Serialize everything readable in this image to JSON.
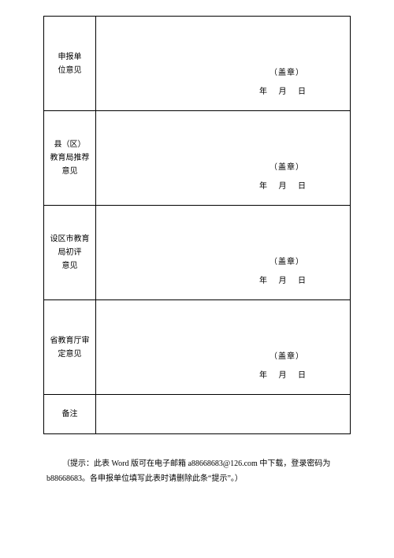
{
  "form": {
    "rows": [
      {
        "label": "申报单\n位意见",
        "seal": "（盖章）",
        "date": {
          "y": "年",
          "m": "月",
          "d": "日"
        }
      },
      {
        "label": "县（区）\n教育局推荐\n意见",
        "seal": "（盖章）",
        "date": {
          "y": "年",
          "m": "月",
          "d": "日"
        }
      },
      {
        "label": "设区市教育\n局初评\n意见",
        "seal": "（盖章）",
        "date": {
          "y": "年",
          "m": "月",
          "d": "日"
        }
      },
      {
        "label": "省教育厅审\n定意见",
        "seal": "（盖章）",
        "date": {
          "y": "年",
          "m": "月",
          "d": "日"
        }
      }
    ],
    "remarks_label": "备注"
  },
  "hint": "（提示：此表 Word 版可在电子邮箱 a88668683@126.com 中下载，登录密码为 b88668683。各申报单位填写此表时请删除此条“提示”。）"
}
